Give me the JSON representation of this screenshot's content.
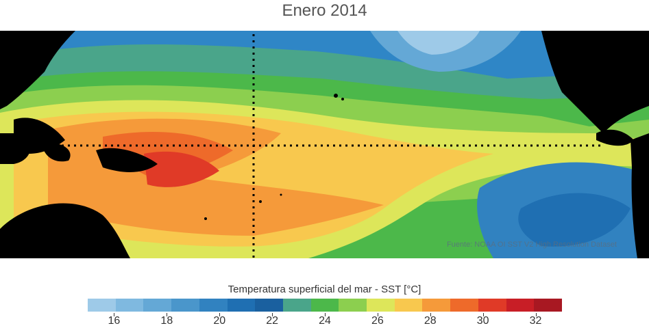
{
  "title": "Enero 2014",
  "source_note": "Fuente: NOAA OI SST V2 High Resolution Dataset",
  "colorbar": {
    "label": "Temperatura superficial del mar - SST  [°C]",
    "colors": [
      "#9ecae8",
      "#7fb9e0",
      "#64a8d6",
      "#4a96cb",
      "#3182c0",
      "#1f6fb2",
      "#1a609f",
      "#4aa58a",
      "#4cb84a",
      "#8ccf4f",
      "#dde65a",
      "#f8c84e",
      "#f59a3a",
      "#ee6a2a",
      "#e03a27",
      "#c81e26",
      "#a81822"
    ],
    "ticks": [
      "16",
      "18",
      "20",
      "22",
      "24",
      "26",
      "28",
      "30",
      "32"
    ]
  },
  "map": {
    "description_icon": "sst-map",
    "guide_lines": [
      "equator-dotted",
      "dateline-dotted"
    ]
  }
}
